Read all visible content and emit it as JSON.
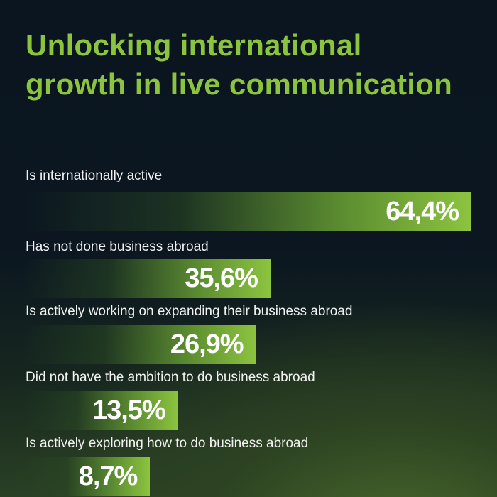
{
  "title_lines": [
    "Unlocking international",
    "growth in live communication"
  ],
  "colors": {
    "accent": "#8cc43f",
    "background": "#0a1520"
  },
  "chart_data": {
    "type": "bar",
    "orientation": "horizontal",
    "title": "Unlocking international growth in live communication",
    "categories": [
      "Is internationally active",
      "Has not done business abroad",
      "Is actively working on expanding their business abroad",
      "Did not have the ambition to do business abroad",
      "Is actively exploring how to do business abroad"
    ],
    "values": [
      64.4,
      35.6,
      26.9,
      13.5,
      8.7
    ],
    "value_labels": [
      "64,4%",
      "35,6%",
      "26,9%",
      "13,5%",
      "8,7%"
    ],
    "unit": "%",
    "grid": false
  }
}
